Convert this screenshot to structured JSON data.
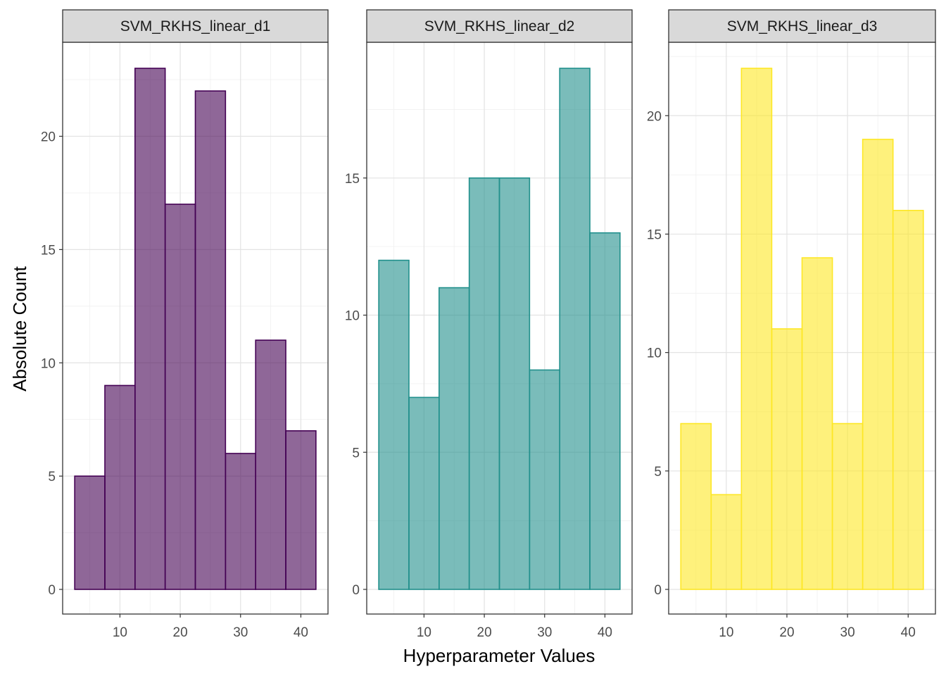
{
  "chart_data": {
    "type": "bar",
    "xlabel": "Hyperparameter Values",
    "ylabel": "Absolute Count",
    "grid": true,
    "bin_width": 5,
    "xlim": [
      0,
      45
    ],
    "xticks": [
      10,
      20,
      30,
      40
    ],
    "panels": [
      {
        "name": "SVM_RKHS_linear_d1",
        "color": "#440154",
        "bin_centers": [
          5,
          10,
          15,
          20,
          25,
          30,
          35,
          40
        ],
        "values": [
          5,
          9,
          23,
          17,
          22,
          6,
          11,
          7
        ],
        "ylim": [
          0,
          23
        ],
        "yticks": [
          0,
          5,
          10,
          15,
          20
        ]
      },
      {
        "name": "SVM_RKHS_linear_d2",
        "color": "#21908C",
        "bin_centers": [
          5,
          10,
          15,
          20,
          25,
          30,
          35,
          40
        ],
        "values": [
          12,
          7,
          11,
          15,
          15,
          8,
          19,
          13
        ],
        "ylim": [
          0,
          19
        ],
        "yticks": [
          0,
          5,
          10,
          15
        ]
      },
      {
        "name": "SVM_RKHS_linear_d3",
        "color": "#FDE725",
        "bin_centers": [
          5,
          10,
          15,
          20,
          25,
          30,
          35,
          40
        ],
        "values": [
          7,
          4,
          22,
          11,
          14,
          7,
          19,
          16
        ],
        "ylim": [
          0,
          22
        ],
        "yticks": [
          0,
          5,
          10,
          15,
          20
        ]
      }
    ]
  }
}
